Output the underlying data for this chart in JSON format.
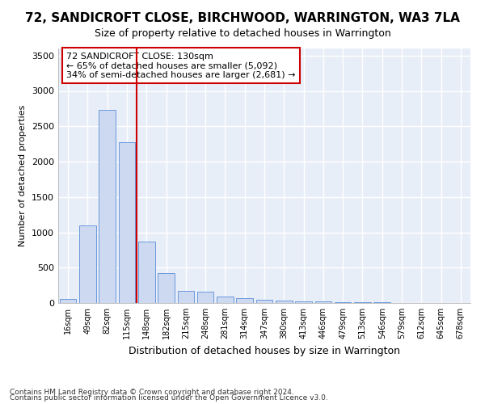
{
  "title": "72, SANDICROFT CLOSE, BIRCHWOOD, WARRINGTON, WA3 7LA",
  "subtitle": "Size of property relative to detached houses in Warrington",
  "xlabel": "Distribution of detached houses by size in Warrington",
  "ylabel": "Number of detached properties",
  "categories": [
    "16sqm",
    "49sqm",
    "82sqm",
    "115sqm",
    "148sqm",
    "182sqm",
    "215sqm",
    "248sqm",
    "281sqm",
    "314sqm",
    "347sqm",
    "380sqm",
    "413sqm",
    "446sqm",
    "479sqm",
    "513sqm",
    "546sqm",
    "579sqm",
    "612sqm",
    "645sqm",
    "678sqm"
  ],
  "values": [
    55,
    1100,
    2730,
    2280,
    870,
    420,
    170,
    165,
    90,
    65,
    50,
    35,
    25,
    20,
    15,
    10,
    8,
    5,
    3,
    2,
    2
  ],
  "bar_color": "#ccd9f0",
  "bar_edge_color": "#5b8dd9",
  "vline_x": 3.5,
  "vline_color": "#cc0000",
  "annotation_line1": "72 SANDICROFT CLOSE: 130sqm",
  "annotation_line2": "← 65% of detached houses are smaller (5,092)",
  "annotation_line3": "34% of semi-detached houses are larger (2,681) →",
  "annotation_box_color": "#cc0000",
  "background_color": "#e8eef8",
  "grid_color": "#ffffff",
  "footnote1": "Contains HM Land Registry data © Crown copyright and database right 2024.",
  "footnote2": "Contains public sector information licensed under the Open Government Licence v3.0.",
  "ylim": [
    0,
    3600
  ],
  "yticks": [
    0,
    500,
    1000,
    1500,
    2000,
    2500,
    3000,
    3500
  ]
}
